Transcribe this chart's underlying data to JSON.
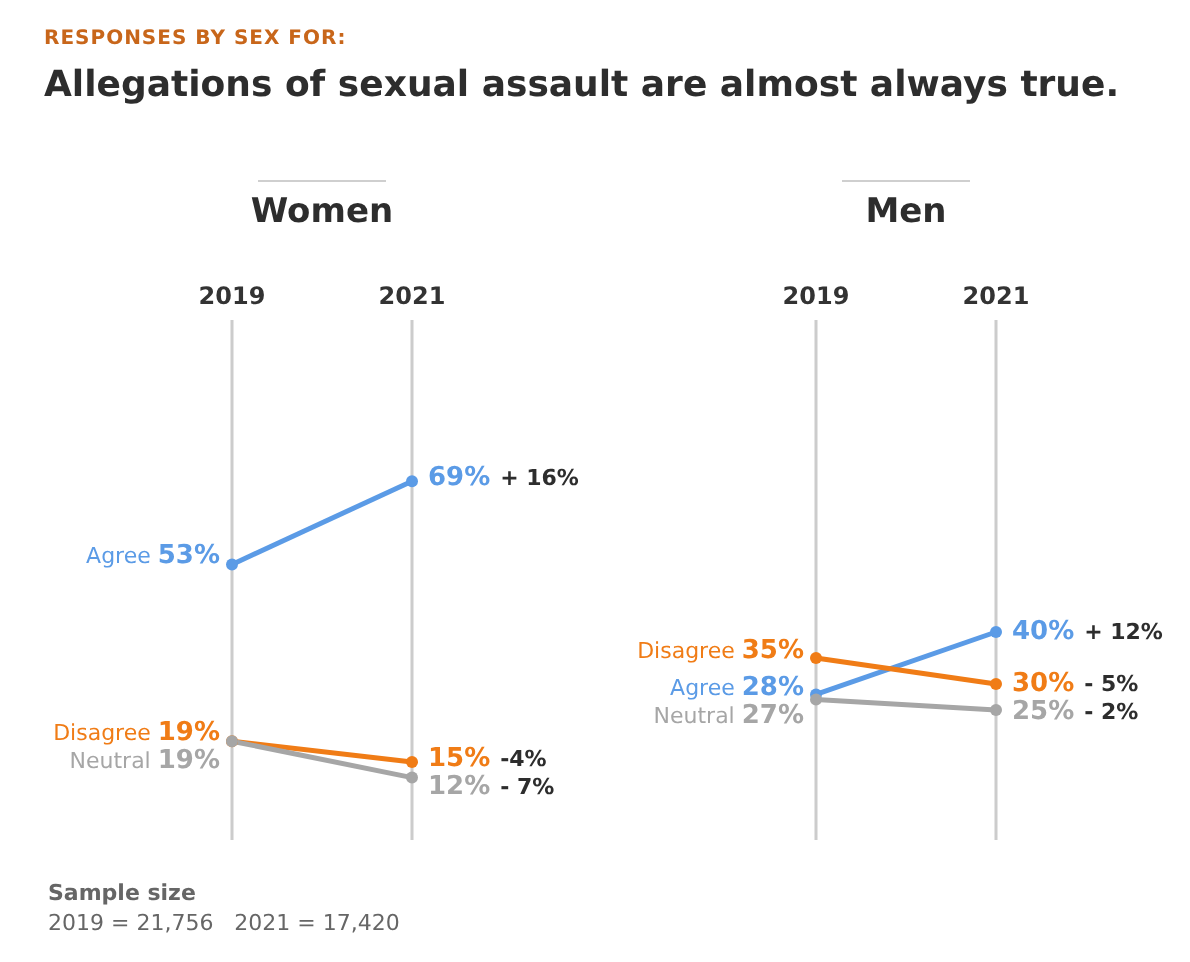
{
  "chart_data": [
    {
      "type": "line",
      "title": "Women",
      "categories": [
        "2019",
        "2021"
      ],
      "ylim": [
        0,
        100
      ],
      "tick_labels": "x",
      "grid": "x",
      "legend": false,
      "marker": "circle",
      "line_style": "solid",
      "series": [
        {
          "name": "Agree",
          "color": "#5b9be6",
          "values": [
            53,
            69
          ],
          "value_labels": [
            "53%",
            "69%"
          ]
        },
        {
          "name": "Disagree",
          "color": "#f07c16",
          "values": [
            19,
            15
          ],
          "value_labels": [
            "19%",
            "15%"
          ]
        },
        {
          "name": "Neutral",
          "color": "#a6a6a6",
          "values": [
            19,
            12
          ],
          "value_labels": [
            "19%",
            "12%"
          ]
        }
      ],
      "annotations": [
        "RESPONSES BY SEX FOR:",
        "Allegations of sexual assault are almost always true.",
        "Sample size",
        "2019 = 21,756   2021 = 17,420",
        "+ 16%",
        "-4%",
        "- 7%"
      ]
    },
    {
      "type": "line",
      "title": "Men",
      "categories": [
        "2019",
        "2021"
      ],
      "ylim": [
        0,
        100
      ],
      "tick_labels": "x",
      "grid": "x",
      "legend": false,
      "marker": "circle",
      "line_style": "solid",
      "series": [
        {
          "name": "Agree",
          "color": "#5b9be6",
          "values": [
            28,
            40
          ],
          "value_labels": [
            "28%",
            "40%"
          ]
        },
        {
          "name": "Disagree",
          "color": "#f07c16",
          "values": [
            35,
            30
          ],
          "value_labels": [
            "35%",
            "30%"
          ]
        },
        {
          "name": "Neutral",
          "color": "#a6a6a6",
          "values": [
            27,
            25
          ],
          "value_labels": [
            "27%",
            "25%"
          ]
        }
      ],
      "annotations": [
        "+ 12%",
        "- 5%",
        "- 2%"
      ]
    }
  ]
}
